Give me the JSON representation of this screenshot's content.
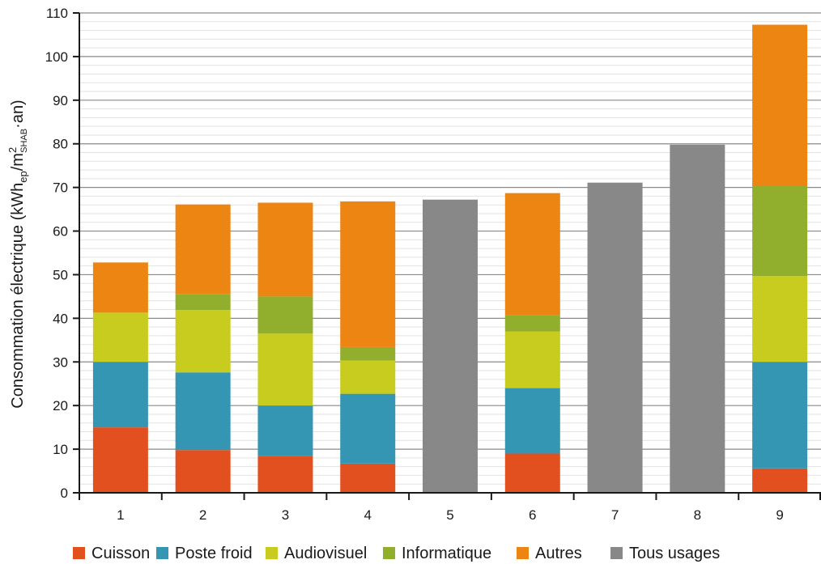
{
  "chart_data": {
    "type": "bar",
    "stacked": true,
    "categories": [
      "1",
      "2",
      "3",
      "4",
      "5",
      "6",
      "7",
      "8",
      "9"
    ],
    "ylim": [
      0,
      110
    ],
    "yticks": [
      0,
      10,
      20,
      30,
      40,
      50,
      60,
      70,
      80,
      90,
      100,
      110
    ],
    "ylabel": {
      "prefix": "Consommation électrique (kWh",
      "sub1": "ep",
      "mid": "/m",
      "sup": "2",
      "sub2": "SHAB",
      "suffix": "·an)"
    },
    "xlabel": "",
    "grid": true,
    "legend_position": "bottom",
    "series": [
      {
        "name": "Cuisson",
        "color": "#e2501f",
        "values": [
          15,
          9.8,
          8.5,
          6.7,
          0,
          9,
          0,
          0,
          5.6
        ]
      },
      {
        "name": "Poste froid",
        "color": "#3596b4",
        "values": [
          15,
          17.8,
          11.5,
          16,
          0,
          15,
          0,
          0,
          24.4
        ]
      },
      {
        "name": "Audiovisuel",
        "color": "#c7cc1e",
        "values": [
          11.3,
          14.3,
          16.5,
          7.6,
          0,
          13,
          0,
          0,
          19.7
        ]
      },
      {
        "name": "Informatique",
        "color": "#92ae2d",
        "values": [
          0,
          3.6,
          8.5,
          3.1,
          0,
          3.7,
          0,
          0,
          20.6
        ]
      },
      {
        "name": "Autres",
        "color": "#ed8513",
        "values": [
          11.5,
          20.6,
          21.5,
          33.4,
          0,
          28,
          0,
          0,
          37
        ]
      },
      {
        "name": "Tous usages",
        "color": "#888888",
        "values": [
          0,
          0,
          0,
          0,
          67.2,
          0,
          71.1,
          79.8,
          0
        ]
      }
    ]
  }
}
